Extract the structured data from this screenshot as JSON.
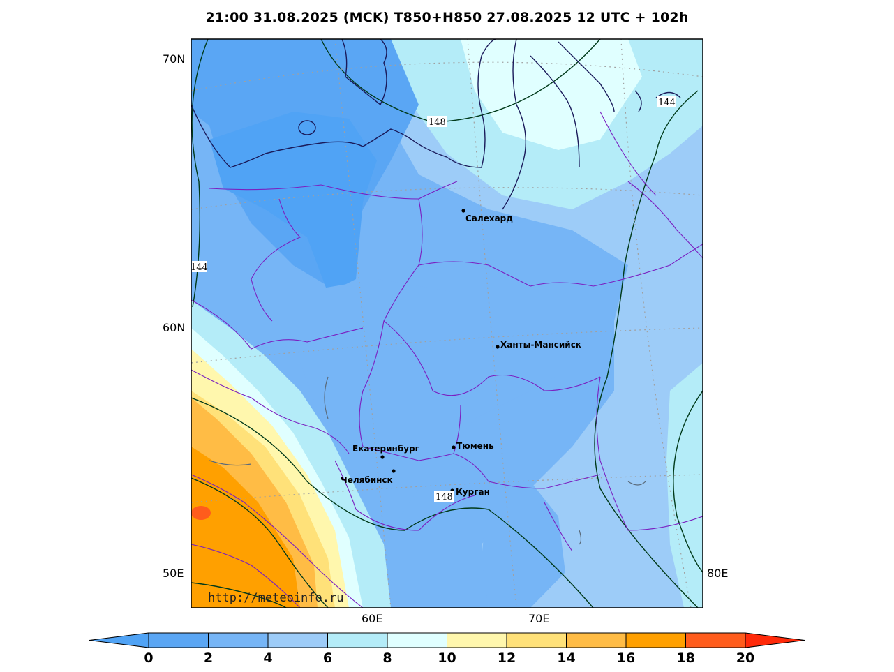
{
  "title": "21:00 31.08.2025 (MCK) T850+H850 27.08.2025 12 UTC + 102h",
  "lat_labels": [
    "70N",
    "60N",
    "50E"
  ],
  "lon_labels": [
    "60E",
    "70E",
    "80E"
  ],
  "cities": [
    {
      "name": "Салехард"
    },
    {
      "name": "Ханты-Мансийск"
    },
    {
      "name": "Екатеринбург"
    },
    {
      "name": "Тюмень"
    },
    {
      "name": "Челябинск"
    },
    {
      "name": "Курган"
    }
  ],
  "contour_labels": [
    "148",
    "144",
    "144",
    "148"
  ],
  "watermark": "http://meteoinfo.ru",
  "colorbar": {
    "ticks": [
      "0",
      "2",
      "4",
      "6",
      "8",
      "10",
      "12",
      "14",
      "16",
      "18",
      "20"
    ],
    "colors": [
      "#50a3f5",
      "#5aa6f4",
      "#76b5f6",
      "#9dccf8",
      "#b4ecf8",
      "#e0ffff",
      "#fff7ad",
      "#ffe179",
      "#ffbc45",
      "#ffa000",
      "#ff5c1c",
      "#ff2a0a"
    ]
  }
}
